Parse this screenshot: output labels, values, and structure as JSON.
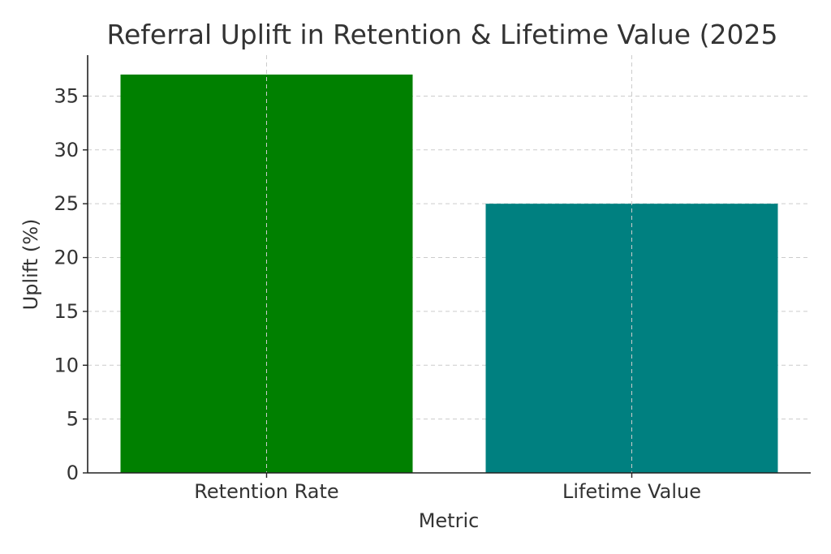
{
  "chart_data": {
    "type": "bar",
    "title": "Referral Uplift in Retention & Lifetime Value (2025",
    "xlabel": "Metric",
    "ylabel": "Uplift (%)",
    "categories": [
      "Retention Rate",
      "Lifetime Value"
    ],
    "values": [
      37,
      25
    ],
    "colors": [
      "#008000",
      "#008080"
    ],
    "ylim": [
      0,
      38.8
    ],
    "yticks": [
      0,
      5,
      10,
      15,
      20,
      25,
      30,
      35
    ],
    "grid": true
  }
}
